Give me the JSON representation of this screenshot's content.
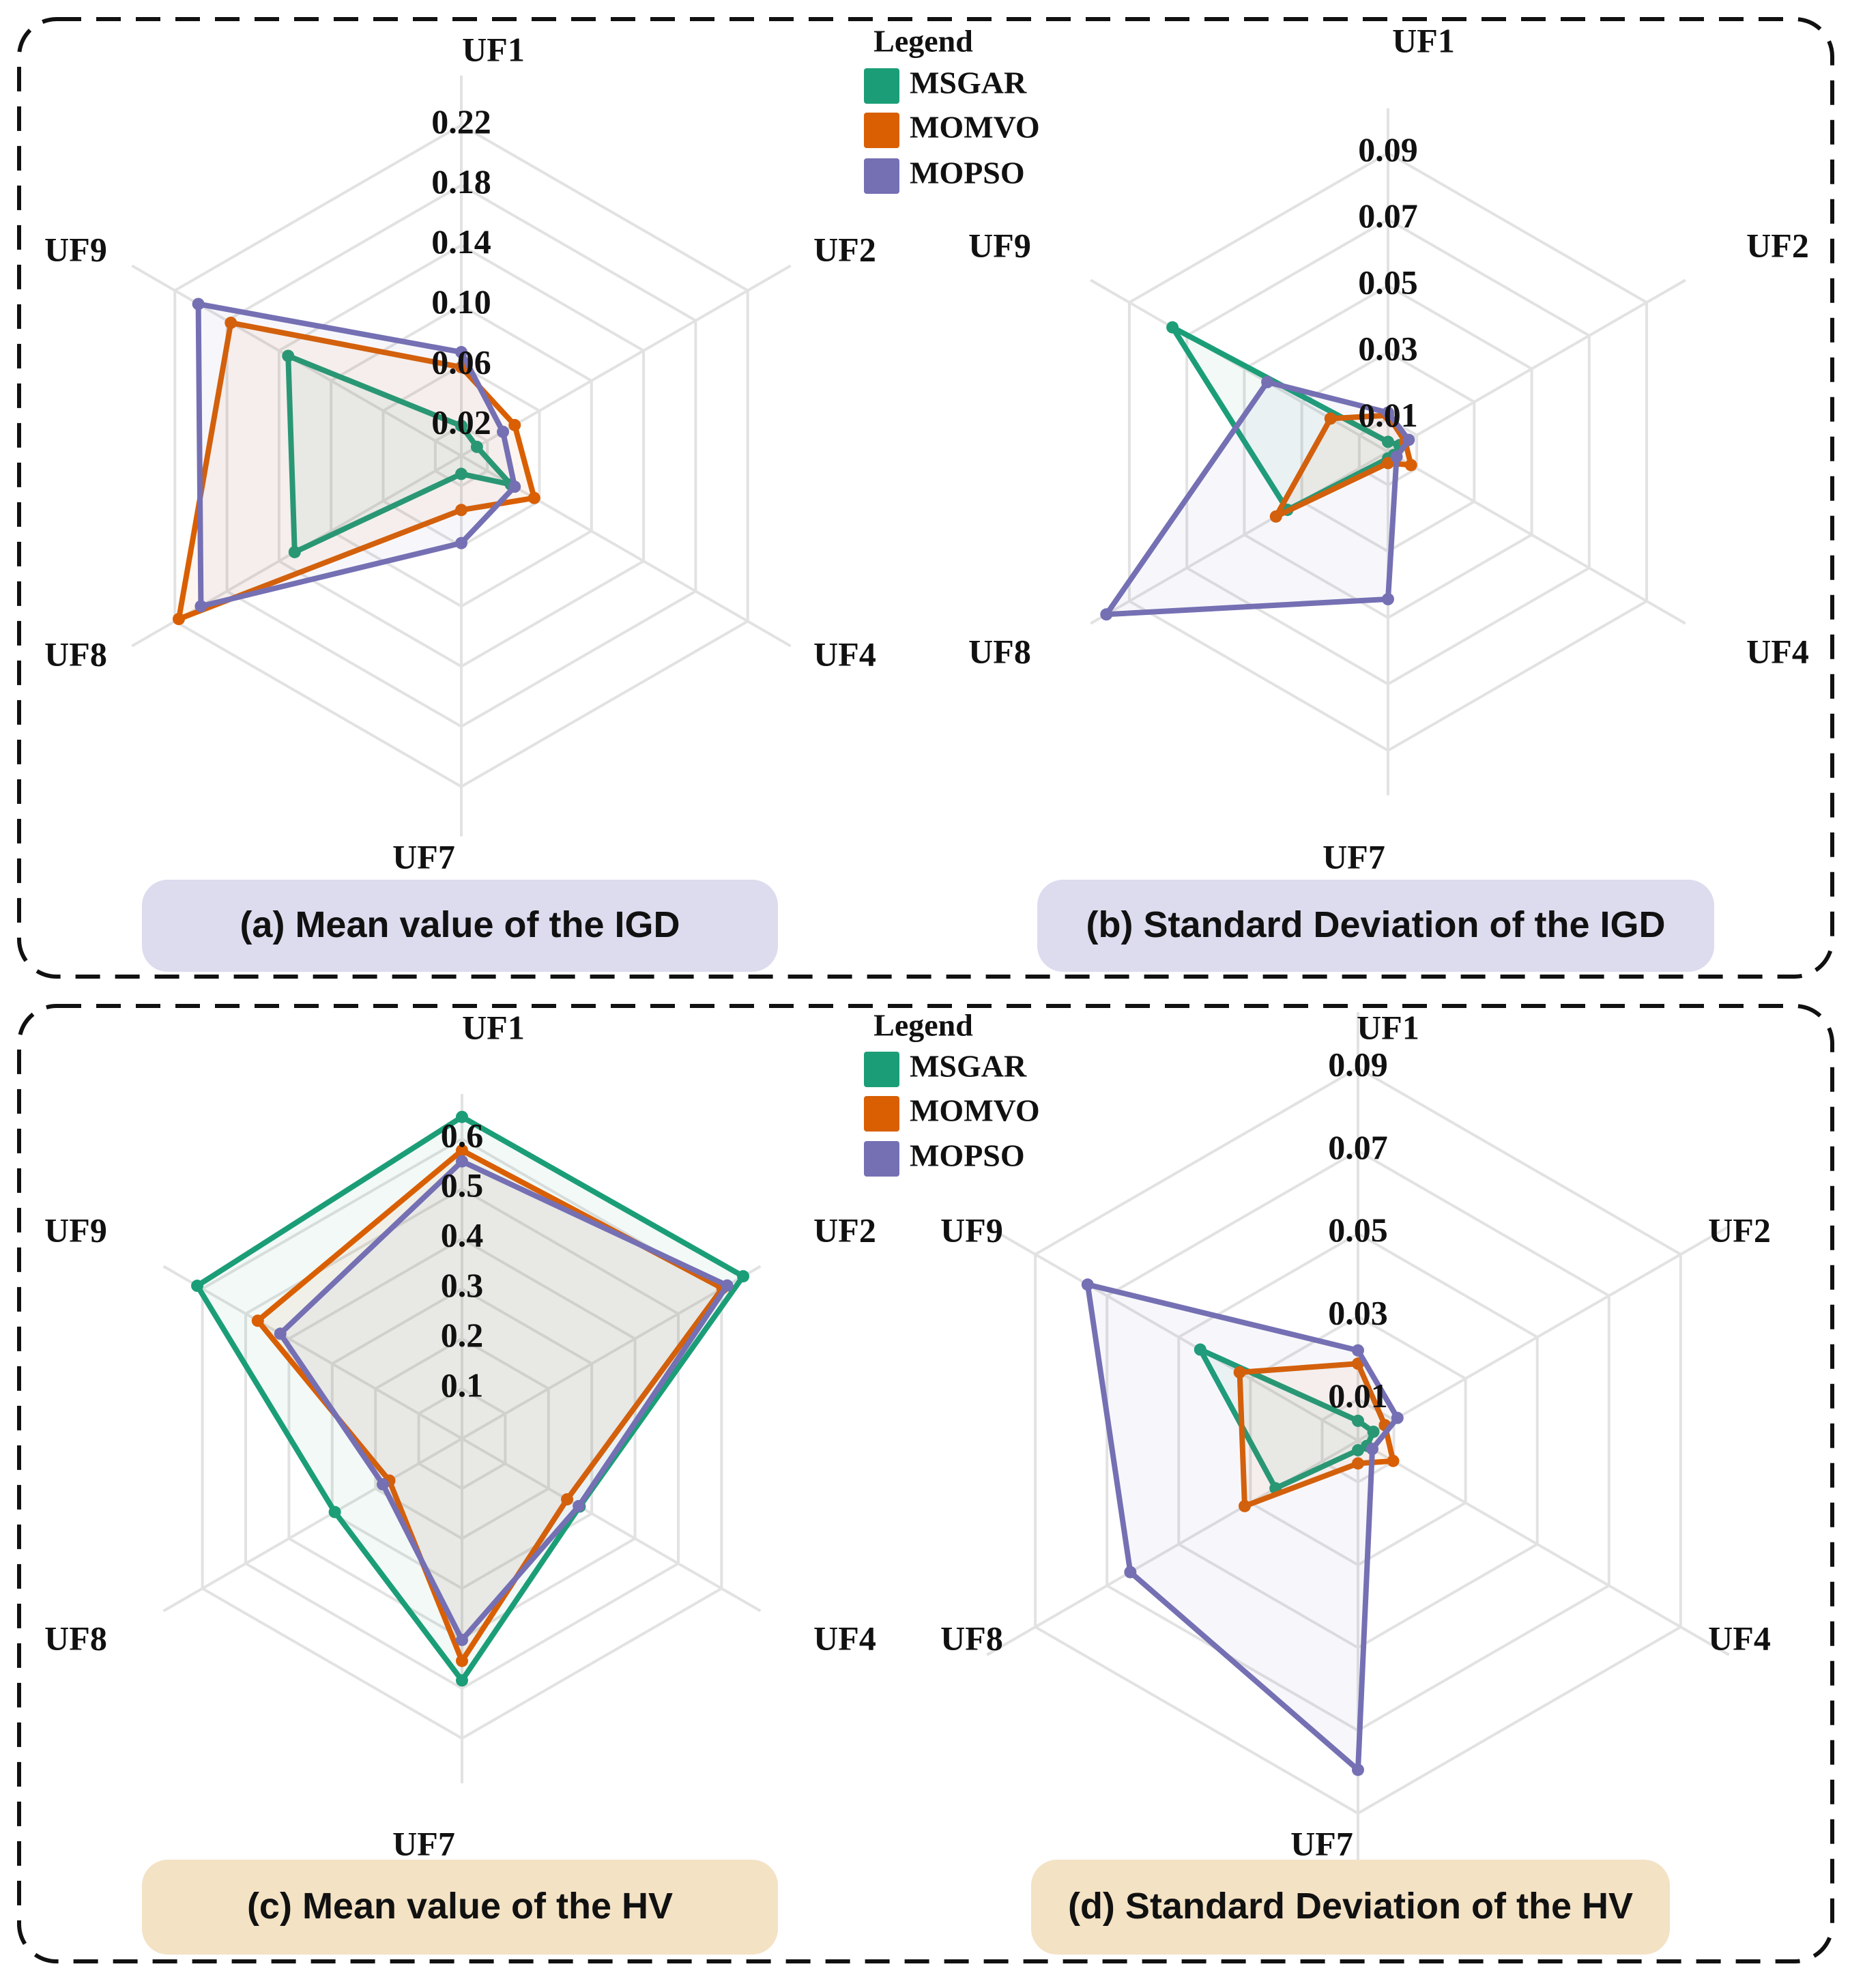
{
  "colors": {
    "MSGAR": "#1b9e77",
    "MOMVO": "#d95f02",
    "MOPSO": "#7570b3",
    "grid": "#e2e2e2",
    "igd_pill": "#dcdcee",
    "hv_pill": "#f3e2c4"
  },
  "legend": {
    "title": "Legend",
    "entries": [
      "MSGAR",
      "MOMVO",
      "MOPSO"
    ]
  },
  "chart_data": [
    {
      "type": "radar",
      "title": "(a) Mean value of the IGD",
      "axes": [
        "UF1",
        "UF2",
        "UF4",
        "UF7",
        "UF8",
        "UF9"
      ],
      "ticks": [
        "0.02",
        "0.06",
        "0.10",
        "0.14",
        "0.18",
        "0.22"
      ],
      "tick_values": [
        0.02,
        0.06,
        0.1,
        0.14,
        0.18,
        0.22
      ],
      "range": [
        0,
        0.22
      ],
      "series": [
        {
          "name": "MSGAR",
          "values": [
            0.02,
            0.012,
            0.038,
            0.012,
            0.128,
            0.133
          ]
        },
        {
          "name": "MOMVO",
          "values": [
            0.059,
            0.041,
            0.056,
            0.036,
            0.217,
            0.177
          ]
        },
        {
          "name": "MOPSO",
          "values": [
            0.069,
            0.032,
            0.041,
            0.058,
            0.2,
            0.202
          ]
        }
      ]
    },
    {
      "type": "radar",
      "title": "(b) Standard Deviation of the IGD",
      "axes": [
        "UF1",
        "UF2",
        "UF4",
        "UF7",
        "UF8",
        "UF9"
      ],
      "ticks": [
        "0.01",
        "0.03",
        "0.05",
        "0.07",
        "0.09"
      ],
      "tick_values": [
        0.01,
        0.03,
        0.05,
        0.07,
        0.09
      ],
      "range": [
        0,
        0.09
      ],
      "series": [
        {
          "name": "MSGAR",
          "values": [
            0.003,
            0.004,
            0.002,
            0.002,
            0.035,
            0.075
          ]
        },
        {
          "name": "MOMVO",
          "values": [
            0.011,
            0.006,
            0.008,
            0.0034,
            0.039,
            0.02
          ]
        },
        {
          "name": "MOPSO",
          "values": [
            0.0118,
            0.0072,
            0.003,
            0.0444,
            0.098,
            0.042
          ]
        }
      ]
    },
    {
      "type": "radar",
      "title": "(c) Mean value of the HV",
      "axes": [
        "UF1",
        "UF2",
        "UF4",
        "UF7",
        "UF8",
        "UF9"
      ],
      "ticks": [
        "0.1",
        "0.2",
        "0.3",
        "0.4",
        "0.5",
        "0.6"
      ],
      "tick_values": [
        0.1,
        0.2,
        0.3,
        0.4,
        0.5,
        0.6
      ],
      "range": [
        0,
        0.6
      ],
      "series": [
        {
          "name": "MSGAR",
          "values": [
            0.644,
            0.65,
            0.272,
            0.484,
            0.294,
            0.612
          ]
        },
        {
          "name": "MOMVO",
          "values": [
            0.577,
            0.602,
            0.243,
            0.445,
            0.168,
            0.472
          ]
        },
        {
          "name": "MOPSO",
          "values": [
            0.555,
            0.613,
            0.27,
            0.403,
            0.183,
            0.42
          ]
        }
      ]
    },
    {
      "type": "radar",
      "title": "(d) Standard Deviation of the HV",
      "axes": [
        "UF1",
        "UF2",
        "UF4",
        "UF7",
        "UF8",
        "UF9"
      ],
      "ticks": [
        "0.01",
        "0.03",
        "0.05",
        "0.07",
        "0.09"
      ],
      "tick_values": [
        0.01,
        0.03,
        0.05,
        0.07,
        0.09
      ],
      "range": [
        0,
        0.09
      ],
      "series": [
        {
          "name": "MSGAR",
          "values": [
            0.0048,
            0.0043,
            0.0025,
            0.0023,
            0.023,
            0.044
          ]
        },
        {
          "name": "MOMVO",
          "values": [
            0.0186,
            0.0075,
            0.0098,
            0.0055,
            0.0316,
            0.033
          ]
        },
        {
          "name": "MOPSO",
          "values": [
            0.0218,
            0.011,
            0.004,
            0.0795,
            0.0635,
            0.0754
          ]
        }
      ]
    }
  ]
}
